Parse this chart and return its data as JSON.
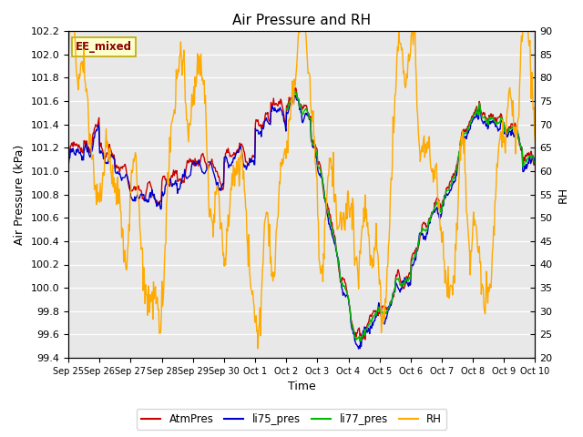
{
  "title": "Air Pressure and RH",
  "xlabel": "Time",
  "ylabel_left": "Air Pressure (kPa)",
  "ylabel_right": "RH",
  "annotation": "EE_mixed",
  "ylim_left": [
    99.4,
    102.2
  ],
  "ylim_right": [
    20,
    90
  ],
  "yticks_left": [
    99.4,
    99.6,
    99.8,
    100.0,
    100.2,
    100.4,
    100.6,
    100.8,
    101.0,
    101.2,
    101.4,
    101.6,
    101.8,
    102.0,
    102.2
  ],
  "yticks_right": [
    20,
    25,
    30,
    35,
    40,
    45,
    50,
    55,
    60,
    65,
    70,
    75,
    80,
    85,
    90
  ],
  "xtick_labels": [
    "Sep 25",
    "Sep 26",
    "Sep 27",
    "Sep 28",
    "Sep 29",
    "Sep 30",
    "Oct 1",
    "Oct 2",
    "Oct 3",
    "Oct 4",
    "Oct 5",
    "Oct 6",
    "Oct 7",
    "Oct 8",
    "Oct 9",
    "Oct 10"
  ],
  "colors": {
    "AtmPres": "#cc0000",
    "li75_pres": "#0000cc",
    "li77_pres": "#00bb00",
    "RH": "#ffaa00",
    "background": "#e8e8e8",
    "annotation_bg": "#ffffcc",
    "annotation_border": "#bbaa00",
    "annotation_text": "#880000"
  },
  "legend_labels": [
    "AtmPres",
    "li75_pres",
    "li77_pres",
    "RH"
  ],
  "n_points": 720
}
